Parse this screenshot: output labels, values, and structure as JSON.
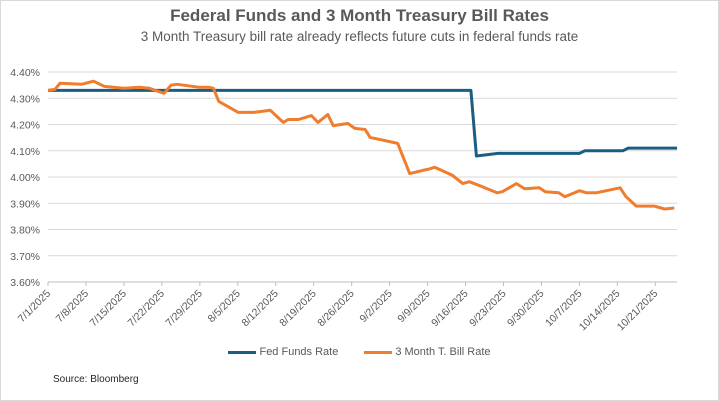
{
  "chart_data": {
    "type": "line",
    "title": "Federal Funds and 3 Month Treasury Bill Rates",
    "subtitle": "3 Month Treasury bill rate already reflects future cuts in federal funds rate",
    "xlabel": "",
    "ylabel": "",
    "ylim": [
      3.6,
      4.4
    ],
    "xlim_days": [
      0,
      116
    ],
    "x_origin": "7/1/2025",
    "grid": true,
    "legend_position": "bottom",
    "y_ticks": [
      "4.40%",
      "4.30%",
      "4.20%",
      "4.10%",
      "4.00%",
      "3.90%",
      "3.80%",
      "3.70%",
      "3.60%"
    ],
    "y_tick_values": [
      4.4,
      4.3,
      4.2,
      4.1,
      4.0,
      3.9,
      3.8,
      3.7,
      3.6
    ],
    "x_ticks": [
      "7/1/2025",
      "7/8/2025",
      "7/15/2025",
      "7/22/2025",
      "7/29/2025",
      "8/5/2025",
      "8/12/2025",
      "8/19/2025",
      "8/26/2025",
      "9/2/2025",
      "9/9/2025",
      "9/16/2025",
      "9/23/2025",
      "9/30/2025",
      "10/7/2025",
      "10/14/2025",
      "10/21/2025"
    ],
    "x_tick_days": [
      0,
      7,
      14,
      21,
      28,
      35,
      42,
      49,
      56,
      63,
      70,
      77,
      84,
      91,
      98,
      105,
      112
    ],
    "series": [
      {
        "name": "Fed Funds Rate",
        "color": "#1b5e82",
        "x_days": [
          0,
          78,
          79,
          83,
          98,
          99,
          106,
          107,
          116
        ],
        "values": [
          4.33,
          4.33,
          4.08,
          4.09,
          4.09,
          4.1,
          4.1,
          4.11,
          4.11
        ]
      },
      {
        "name": "3 Month T. Bill Rate",
        "color": "#f07c2e",
        "x_days": [
          0,
          1.3,
          2.2,
          6.2,
          8.4,
          10.4,
          14,
          16.8,
          18.7,
          21.4,
          22.7,
          23.8,
          27.8,
          29.6,
          30.5,
          31.5,
          35.1,
          37.9,
          41,
          43.4,
          44.3,
          46.2,
          48.6,
          49.8,
          51.6,
          52.6,
          55.3,
          56.6,
          58.5,
          59.4,
          64.5,
          66.7,
          69.1,
          70,
          71.3,
          72.2,
          74.6,
          76.5,
          77.7,
          80.1,
          82.8,
          83.8,
          86.4,
          87.9,
          90.6,
          91.7,
          94.2,
          95.3,
          98,
          99.3,
          101.1,
          105.5,
          106.6,
          108.5,
          111.8,
          113.7,
          115.5
        ],
        "values": [
          4.33,
          4.334,
          4.357,
          4.353,
          4.365,
          4.345,
          4.338,
          4.342,
          4.338,
          4.319,
          4.35,
          4.353,
          4.342,
          4.342,
          4.338,
          4.288,
          4.246,
          4.246,
          4.254,
          4.208,
          4.219,
          4.219,
          4.234,
          4.208,
          4.238,
          4.196,
          4.204,
          4.185,
          4.181,
          4.151,
          4.128,
          4.013,
          4.025,
          4.029,
          4.037,
          4.029,
          4.006,
          3.975,
          3.982,
          3.963,
          3.94,
          3.944,
          3.975,
          3.955,
          3.959,
          3.944,
          3.94,
          3.925,
          3.948,
          3.94,
          3.94,
          3.959,
          3.925,
          3.889,
          3.889,
          3.878,
          3.882
        ]
      }
    ]
  },
  "legend": {
    "items": [
      {
        "label": "Fed Funds Rate",
        "color": "#1b5e82"
      },
      {
        "label": "3 Month T. Bill Rate",
        "color": "#f07c2e"
      }
    ]
  },
  "source": "Source: Bloomberg"
}
